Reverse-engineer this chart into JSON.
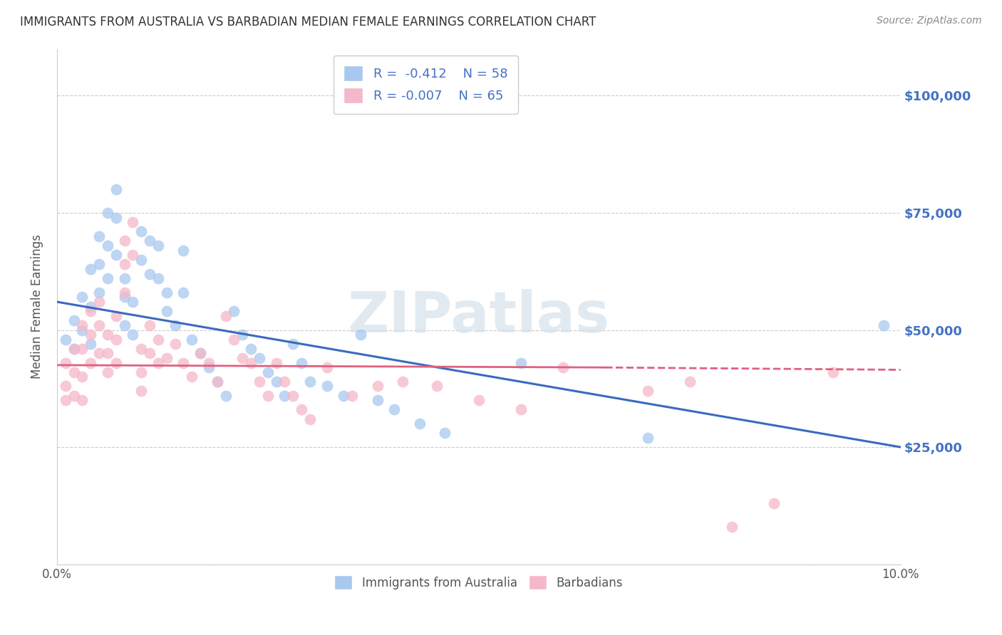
{
  "title": "IMMIGRANTS FROM AUSTRALIA VS BARBADIAN MEDIAN FEMALE EARNINGS CORRELATION CHART",
  "source": "Source: ZipAtlas.com",
  "ylabel": "Median Female Earnings",
  "xlim": [
    0.0,
    0.1
  ],
  "ylim": [
    0,
    110000
  ],
  "yticks": [
    0,
    25000,
    50000,
    75000,
    100000
  ],
  "ytick_labels": [
    "",
    "$25,000",
    "$50,000",
    "$75,000",
    "$100,000"
  ],
  "background_color": "#ffffff",
  "grid_color": "#cccccc",
  "blue_color": "#a8c8f0",
  "pink_color": "#f5b8c8",
  "blue_line_color": "#3a6abf",
  "pink_line_color": "#e06080",
  "right_label_color": "#4472c4",
  "label_color": "#4472c4",
  "watermark_color": "#d0dce8",
  "blue_scatter_x": [
    0.001,
    0.002,
    0.002,
    0.003,
    0.003,
    0.004,
    0.004,
    0.004,
    0.005,
    0.005,
    0.005,
    0.006,
    0.006,
    0.006,
    0.007,
    0.007,
    0.007,
    0.008,
    0.008,
    0.008,
    0.009,
    0.009,
    0.01,
    0.01,
    0.011,
    0.011,
    0.012,
    0.012,
    0.013,
    0.013,
    0.014,
    0.015,
    0.015,
    0.016,
    0.017,
    0.018,
    0.019,
    0.02,
    0.021,
    0.022,
    0.023,
    0.024,
    0.025,
    0.026,
    0.027,
    0.028,
    0.029,
    0.03,
    0.032,
    0.034,
    0.036,
    0.038,
    0.04,
    0.043,
    0.046,
    0.055,
    0.07,
    0.098
  ],
  "blue_scatter_y": [
    48000,
    52000,
    46000,
    57000,
    50000,
    63000,
    55000,
    47000,
    70000,
    64000,
    58000,
    75000,
    68000,
    61000,
    80000,
    74000,
    66000,
    61000,
    57000,
    51000,
    56000,
    49000,
    71000,
    65000,
    69000,
    62000,
    68000,
    61000,
    58000,
    54000,
    51000,
    67000,
    58000,
    48000,
    45000,
    42000,
    39000,
    36000,
    54000,
    49000,
    46000,
    44000,
    41000,
    39000,
    36000,
    47000,
    43000,
    39000,
    38000,
    36000,
    49000,
    35000,
    33000,
    30000,
    28000,
    43000,
    27000,
    51000
  ],
  "pink_scatter_x": [
    0.001,
    0.001,
    0.001,
    0.002,
    0.002,
    0.002,
    0.003,
    0.003,
    0.003,
    0.003,
    0.004,
    0.004,
    0.004,
    0.005,
    0.005,
    0.005,
    0.006,
    0.006,
    0.006,
    0.007,
    0.007,
    0.007,
    0.008,
    0.008,
    0.008,
    0.009,
    0.009,
    0.01,
    0.01,
    0.01,
    0.011,
    0.011,
    0.012,
    0.012,
    0.013,
    0.014,
    0.015,
    0.016,
    0.017,
    0.018,
    0.019,
    0.02,
    0.021,
    0.022,
    0.023,
    0.024,
    0.025,
    0.026,
    0.027,
    0.028,
    0.029,
    0.03,
    0.032,
    0.035,
    0.038,
    0.041,
    0.045,
    0.05,
    0.055,
    0.06,
    0.07,
    0.075,
    0.08,
    0.085,
    0.092
  ],
  "pink_scatter_y": [
    43000,
    38000,
    35000,
    46000,
    41000,
    36000,
    51000,
    46000,
    40000,
    35000,
    54000,
    49000,
    43000,
    56000,
    51000,
    45000,
    49000,
    45000,
    41000,
    53000,
    48000,
    43000,
    69000,
    64000,
    58000,
    73000,
    66000,
    46000,
    41000,
    37000,
    51000,
    45000,
    48000,
    43000,
    44000,
    47000,
    43000,
    40000,
    45000,
    43000,
    39000,
    53000,
    48000,
    44000,
    43000,
    39000,
    36000,
    43000,
    39000,
    36000,
    33000,
    31000,
    42000,
    36000,
    38000,
    39000,
    38000,
    35000,
    33000,
    42000,
    37000,
    39000,
    8000,
    13000,
    41000
  ]
}
